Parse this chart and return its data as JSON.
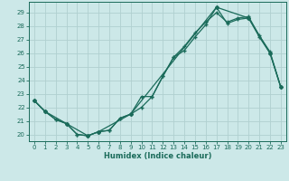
{
  "xlabel": "Humidex (Indice chaleur)",
  "bg_color": "#cce8e8",
  "grid_color": "#b0d0d0",
  "line_color": "#1a6b5a",
  "xlim": [
    -0.5,
    23.5
  ],
  "ylim": [
    19.5,
    29.8
  ],
  "yticks": [
    20,
    21,
    22,
    23,
    24,
    25,
    26,
    27,
    28,
    29
  ],
  "xticks": [
    0,
    1,
    2,
    3,
    4,
    5,
    6,
    7,
    8,
    9,
    10,
    11,
    12,
    13,
    14,
    15,
    16,
    17,
    18,
    19,
    20,
    21,
    22,
    23
  ],
  "curve1_x": [
    0,
    1,
    2,
    3,
    4,
    5,
    6,
    7,
    8,
    9,
    10,
    11,
    12,
    13,
    14,
    15,
    16,
    17,
    18,
    19,
    20,
    21,
    22,
    23
  ],
  "curve1_y": [
    22.5,
    21.7,
    21.1,
    20.8,
    20.0,
    19.9,
    20.2,
    20.3,
    21.2,
    21.5,
    22.8,
    22.8,
    24.3,
    25.7,
    26.2,
    27.2,
    28.1,
    29.4,
    28.2,
    28.5,
    28.6,
    27.2,
    26.0,
    23.5
  ],
  "curve2_x": [
    0,
    1,
    2,
    3,
    4,
    5,
    6,
    7,
    8,
    9,
    10,
    11,
    12,
    13,
    14,
    15,
    16,
    17,
    18,
    19,
    20,
    21,
    22,
    23
  ],
  "curve2_y": [
    22.5,
    21.7,
    21.1,
    20.8,
    20.0,
    19.9,
    20.2,
    20.3,
    21.2,
    21.5,
    22.0,
    22.8,
    24.3,
    25.7,
    26.5,
    27.5,
    28.3,
    29.0,
    28.3,
    28.6,
    28.7,
    27.3,
    26.1,
    23.5
  ],
  "polygon_x": [
    0,
    1,
    3,
    5,
    6,
    9,
    17,
    20,
    22,
    23
  ],
  "polygon_y": [
    22.5,
    21.7,
    20.8,
    19.9,
    20.2,
    21.5,
    29.4,
    28.6,
    26.0,
    23.5
  ]
}
